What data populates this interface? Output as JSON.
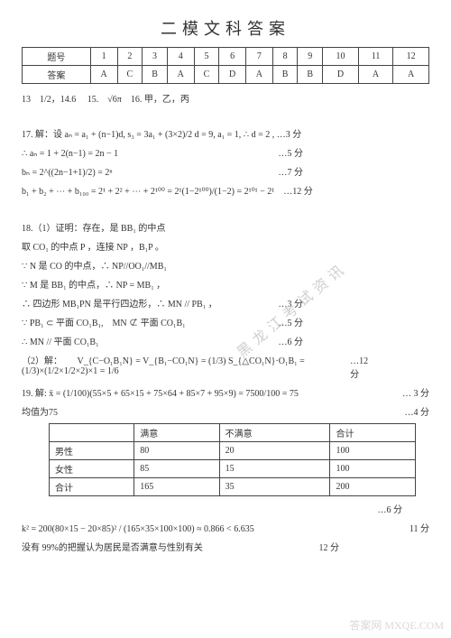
{
  "title": "二模文科答案",
  "answer_table": {
    "header_label": "题号",
    "row_label": "答案",
    "cols": [
      "1",
      "2",
      "3",
      "4",
      "5",
      "6",
      "7",
      "8",
      "9",
      "10",
      "11",
      "12"
    ],
    "vals": [
      "A",
      "C",
      "B",
      "A",
      "C",
      "D",
      "A",
      "B",
      "B",
      "D",
      "A",
      "A"
    ]
  },
  "fill": {
    "q13": "13　1/2，14.6",
    "q15": "15.　√6π",
    "q16": "16. 甲，乙，丙"
  },
  "q17": {
    "l1a": "17. 解：设 aₙ = a₁ + (n−1)d, s₃ = 3a₁ + (3×2)/2 d = 9, a₁ = 1, ∴ d = 2 ,",
    "l1s": "…3 分",
    "l2a": "∴ aₙ = 1 + 2(n−1) = 2n − 1",
    "l2s": "…5 分",
    "l3a": "bₙ = 2^((2n−1+1)/2) = 2ⁿ",
    "l3s": "…7 分",
    "l4a": "b₁ + b₂ + ⋯ + b₁₀₀ = 2¹ + 2² + ⋯ + 2¹⁰⁰ = 2¹(1−2¹⁰⁰)/(1−2) = 2¹⁰¹ − 2¹",
    "l4s": "…12 分"
  },
  "q18": {
    "p1": "18.（1）证明：存在，是 BB₁ 的中点",
    "p2": "取 CO₁ 的中点 P ，连接 NP ，B₁P 。",
    "p3": "∵ N 是 CO 的中点，∴ NP//OO₁//MB₁",
    "p4": "∵ M 是 BB₁ 的中点，∴ NP = MB₁ ，",
    "p5": "∴ 四边形 MB₁PN 是平行四边形，∴ MN // PB₁ ，",
    "p5s": "…3 分",
    "p6": "∵ PB₁ ⊂ 平面 CO₁B₁,　MN ⊄ 平面 CO₁B₁",
    "p6s": "…5 分",
    "p7": "∴ MN // 平面 CO₁B₁",
    "p7s": "…6 分",
    "p8": "（2）解：",
    "p8b": "V_{C−O₁B₁N} = V_{B₁−CO₁N} = (1/3) S_{△CO₁N}·O₁B₁ = (1/3)×(1/2×1/2×2)×1 = 1/6",
    "p8s": "…12 分"
  },
  "q19": {
    "l1": "19. 解: x̄ = (1/100)(55×5 + 65×15 + 75×64 + 85×7 + 95×9) = 7500/100 = 75",
    "l1s": "… 3 分",
    "l2": "均值为75",
    "l2s": "…4 分",
    "sat": {
      "cols": [
        "",
        "满意",
        "不满意",
        "合计"
      ],
      "rows": [
        [
          "男性",
          "80",
          "20",
          "100"
        ],
        [
          "女性",
          "85",
          "15",
          "100"
        ],
        [
          "合计",
          "165",
          "35",
          "200"
        ]
      ],
      "score": "…6 分"
    },
    "k2": "k² = 200(80×15 − 20×85)² / (165×35×100×100) ≈ 0.866 < 6.635",
    "k2s": "11 分",
    "conc": "没有 99%的把握认为居民是否满意与性别有关",
    "concs": "12 分"
  },
  "watermark_diag": "黑龙江考试资讯",
  "watermark_corner": "答案网 MXQE.COM"
}
